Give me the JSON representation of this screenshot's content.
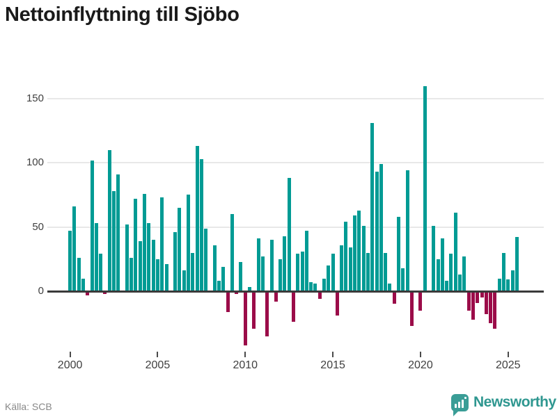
{
  "title": "Nettoinflyttning till Sjöbo",
  "source": "Källa: SCB",
  "logo": {
    "text": "Newsworthy"
  },
  "colors": {
    "positive": "#009b94",
    "negative": "#9b0c49",
    "logo_box": "#3a9d96",
    "logo_text": "#2f9790",
    "gridline": "#e8e8e8",
    "baseline": "#3a3a3a"
  },
  "chart_data": {
    "type": "bar",
    "title": "Nettoinflyttning till Sjöbo",
    "frequency": "quarterly",
    "start_year": 2000,
    "start_quarter": 1,
    "x_tick_labels": [
      "2000",
      "2005",
      "2010",
      "2015",
      "2020",
      "2025"
    ],
    "y_tick_labels": [
      "0",
      "50",
      "100",
      "150"
    ],
    "y_ticks": [
      0,
      50,
      100,
      150
    ],
    "ylim": [
      -50,
      170
    ],
    "grid": "horizontal",
    "legend": "none",
    "values": [
      47,
      66,
      26,
      10,
      -3,
      102,
      53,
      29,
      -2,
      110,
      78,
      91,
      -1,
      52,
      26,
      72,
      39,
      76,
      53,
      40,
      25,
      73,
      21,
      0,
      46,
      65,
      16,
      75,
      30,
      113,
      103,
      49,
      0,
      36,
      8,
      19,
      -16,
      60,
      -2,
      23,
      -42,
      3,
      -29,
      41,
      27,
      -35,
      40,
      -8,
      25,
      43,
      88,
      -24,
      29,
      31,
      47,
      7,
      6,
      -6,
      10,
      20,
      29,
      -19,
      36,
      54,
      34,
      59,
      63,
      51,
      30,
      131,
      93,
      99,
      30,
      6,
      -10,
      58,
      18,
      94,
      -27,
      0,
      -15,
      160,
      0,
      51,
      25,
      41,
      8,
      29,
      61,
      13,
      27,
      -15,
      -22,
      -9,
      -5,
      -18,
      -25,
      -29,
      10,
      30,
      9,
      16,
      42
    ]
  }
}
